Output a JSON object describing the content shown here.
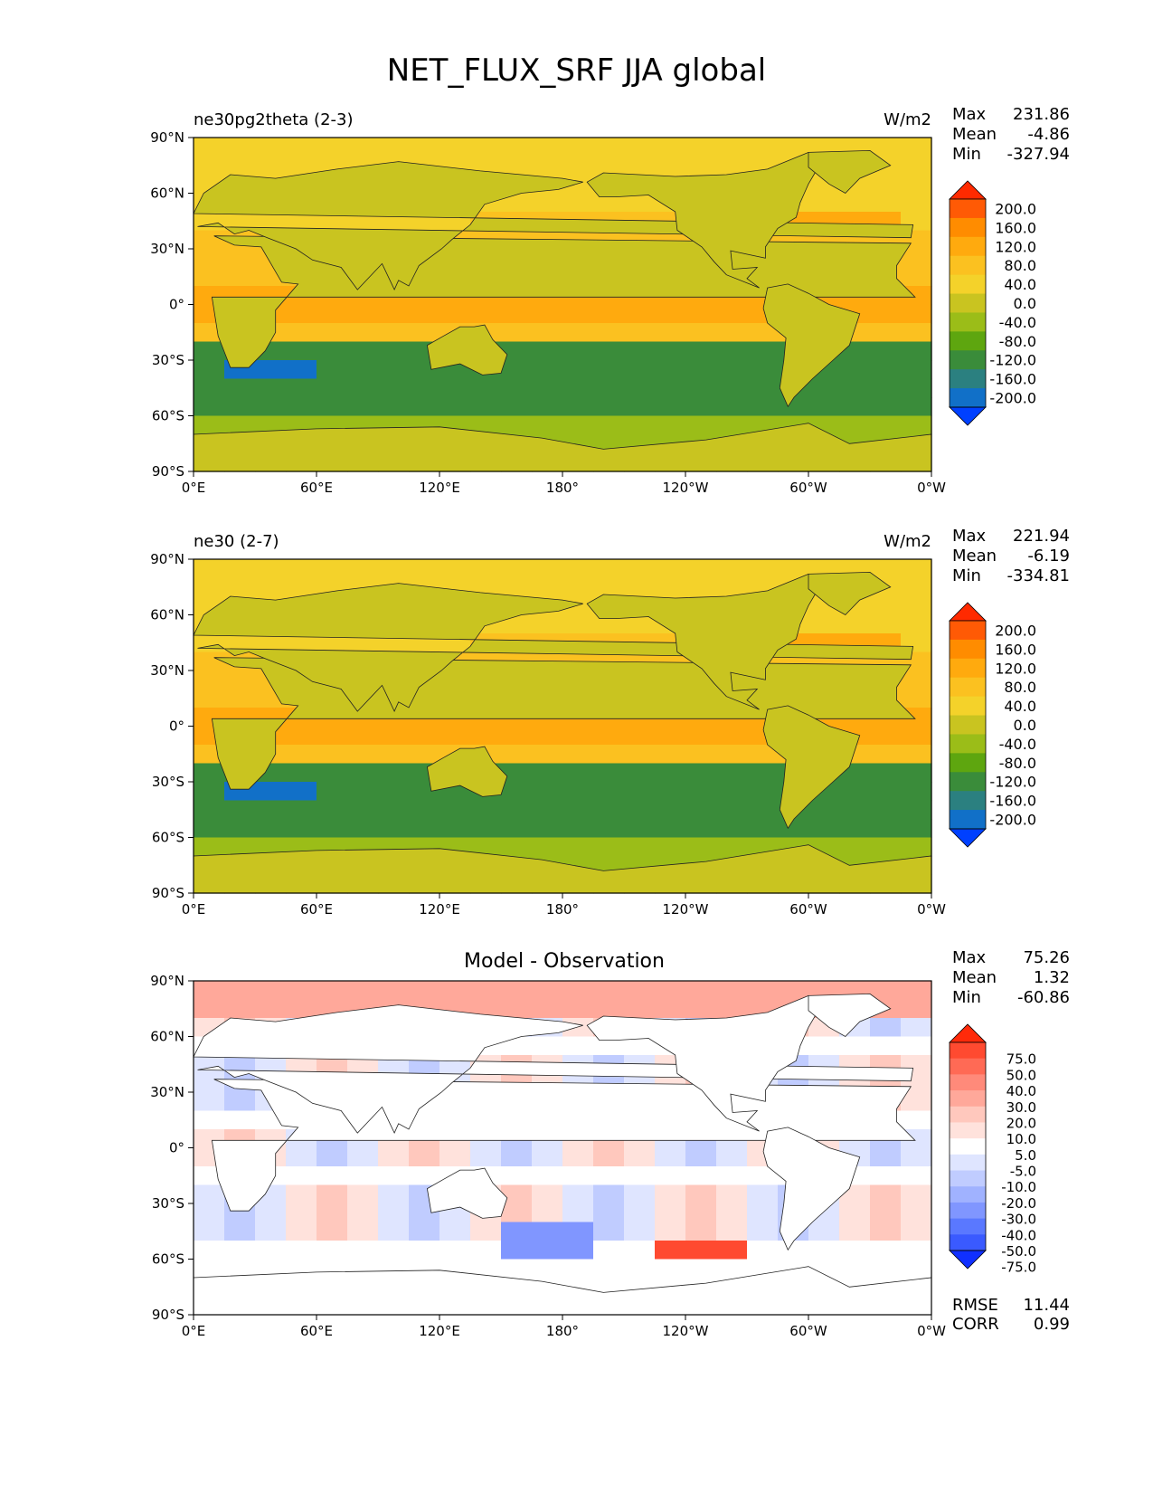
{
  "title": "NET_FLUX_SRF JJA global",
  "x_ticks": [
    "0°E",
    "60°E",
    "120°E",
    "180°",
    "120°W",
    "60°W",
    "0°W"
  ],
  "y_ticks": [
    "90°N",
    "60°N",
    "30°N",
    "0°",
    "30°S",
    "60°S",
    "90°S"
  ],
  "chart_data": [
    {
      "type": "heatmap",
      "title_left": "ne30pg2theta (2-3)",
      "units": "W/m2",
      "stats": {
        "max_label": "Max",
        "max": "231.86",
        "mean_label": "Mean",
        "mean": "-4.86",
        "min_label": "Min",
        "min": "-327.94"
      },
      "colorbar": {
        "labels": [
          "200.0",
          "160.0",
          "120.0",
          "80.0",
          "40.0",
          "0.0",
          "-40.0",
          "-80.0",
          "-120.0",
          "-160.0",
          "-200.0"
        ],
        "colors": [
          "#ff2a00",
          "#ff5a05",
          "#ff8c00",
          "#ffaa0e",
          "#fbc120",
          "#f4d22a",
          "#c9c420",
          "#9bbd18",
          "#5ea60f",
          "#3a8c3a",
          "#2b8080",
          "#1170c8",
          "#0040ff"
        ]
      }
    },
    {
      "type": "heatmap",
      "title_left": "ne30 (2-7)",
      "units": "W/m2",
      "stats": {
        "max_label": "Max",
        "max": "221.94",
        "mean_label": "Mean",
        "mean": "-6.19",
        "min_label": "Min",
        "min": "-334.81"
      },
      "colorbar": {
        "labels": [
          "200.0",
          "160.0",
          "120.0",
          "80.0",
          "40.0",
          "0.0",
          "-40.0",
          "-80.0",
          "-120.0",
          "-160.0",
          "-200.0"
        ],
        "colors": [
          "#ff2a00",
          "#ff5a05",
          "#ff8c00",
          "#ffaa0e",
          "#fbc120",
          "#f4d22a",
          "#c9c420",
          "#9bbd18",
          "#5ea60f",
          "#3a8c3a",
          "#2b8080",
          "#1170c8",
          "#0040ff"
        ]
      }
    },
    {
      "type": "heatmap",
      "title_center": "Model - Observation",
      "stats": {
        "max_label": "Max",
        "max": "75.26",
        "mean_label": "Mean",
        "mean": "1.32",
        "min_label": "Min",
        "min": "-60.86"
      },
      "metrics": {
        "rmse_label": "RMSE",
        "rmse": "11.44",
        "corr_label": "CORR",
        "corr": "0.99"
      },
      "colorbar": {
        "labels": [
          "75.0",
          "50.0",
          "40.0",
          "30.0",
          "20.0",
          "10.0",
          "5.0",
          "-5.0",
          "-10.0",
          "-20.0",
          "-30.0",
          "-40.0",
          "-50.0",
          "-75.0"
        ],
        "colors": [
          "#ff2a0a",
          "#ff4a30",
          "#ff6a55",
          "#ff8a7a",
          "#ffa89a",
          "#ffc8bd",
          "#ffe2dc",
          "#ffffff",
          "#dfe5ff",
          "#c0ccff",
          "#a0b2ff",
          "#8096ff",
          "#5a78ff",
          "#3a5aff",
          "#1030ff"
        ]
      }
    }
  ]
}
